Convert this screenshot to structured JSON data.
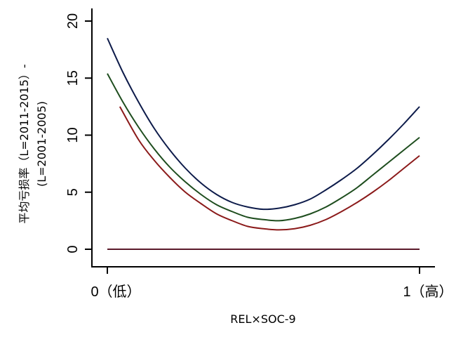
{
  "chart_data": {
    "type": "line",
    "xlabel": "REL×SOC-9",
    "ylabel_lines": [
      "平均亏损率（L=2011-2015）-",
      "(L=2001-2005)"
    ],
    "xlim": [
      0,
      1
    ],
    "ylim": [
      0,
      20
    ],
    "y_ticks": [
      0,
      5,
      10,
      15,
      20
    ],
    "y_tick_labels": [
      "0",
      "5",
      "10",
      "15",
      "20"
    ],
    "x_ticks": [
      0,
      1
    ],
    "x_tick_labels": [
      "0（低）",
      "1（高）"
    ],
    "grid": false,
    "legend": false,
    "series": [
      {
        "color": "#0d1b4a",
        "x": [
          0,
          0.05,
          0.1,
          0.15,
          0.2,
          0.25,
          0.3,
          0.35,
          0.4,
          0.45,
          0.5,
          0.55,
          0.6,
          0.65,
          0.7,
          0.75,
          0.8,
          0.85,
          0.9,
          0.95,
          1
        ],
        "values": [
          18.5,
          15.5,
          12.9,
          10.6,
          8.7,
          7.1,
          5.8,
          4.8,
          4.1,
          3.7,
          3.5,
          3.6,
          3.9,
          4.4,
          5.2,
          6.1,
          7.1,
          8.3,
          9.6,
          11.0,
          12.5
        ]
      },
      {
        "color": "#1e4d1e",
        "x": [
          0,
          0.05,
          0.1,
          0.15,
          0.2,
          0.25,
          0.3,
          0.35,
          0.4,
          0.45,
          0.5,
          0.55,
          0.6,
          0.65,
          0.7,
          0.75,
          0.8,
          0.85,
          0.9,
          0.95,
          1
        ],
        "values": [
          15.4,
          12.9,
          10.7,
          8.8,
          7.2,
          5.9,
          4.8,
          3.9,
          3.3,
          2.8,
          2.6,
          2.5,
          2.7,
          3.1,
          3.7,
          4.5,
          5.4,
          6.5,
          7.6,
          8.7,
          9.8
        ]
      },
      {
        "color": "#8b1a1a",
        "x": [
          0.04,
          0.1,
          0.15,
          0.2,
          0.25,
          0.3,
          0.35,
          0.4,
          0.45,
          0.5,
          0.55,
          0.6,
          0.65,
          0.7,
          0.75,
          0.8,
          0.85,
          0.9,
          0.95,
          1
        ],
        "values": [
          12.5,
          9.6,
          7.8,
          6.3,
          5.0,
          4.0,
          3.1,
          2.5,
          2.0,
          1.8,
          1.7,
          1.8,
          2.1,
          2.6,
          3.3,
          4.1,
          5.0,
          6.0,
          7.1,
          8.2
        ]
      },
      {
        "color": "#5a1a2a",
        "x": [
          0,
          1
        ],
        "values": [
          0,
          0
        ]
      }
    ]
  }
}
